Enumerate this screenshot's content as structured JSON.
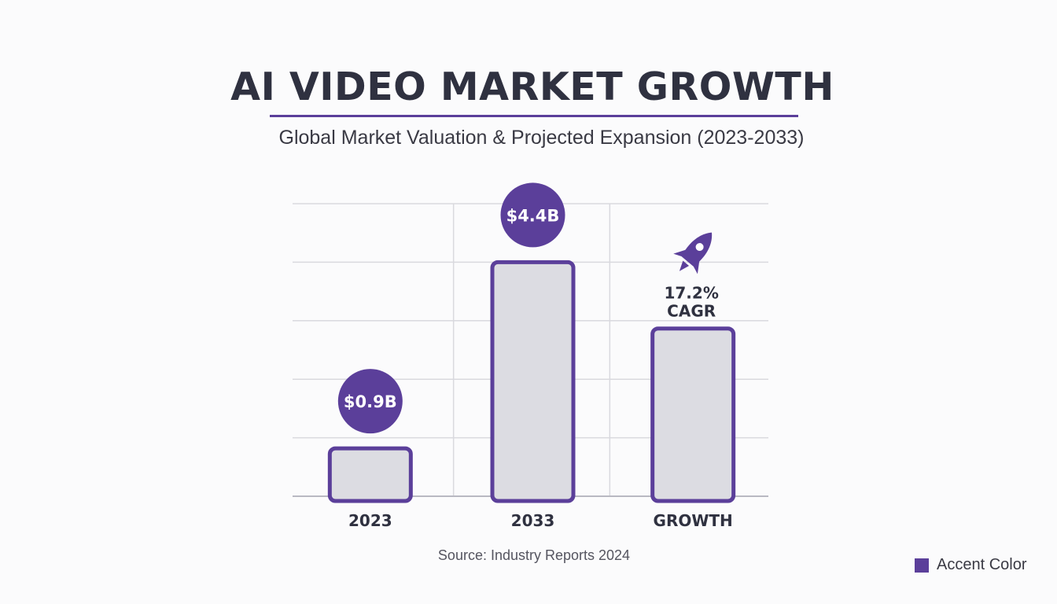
{
  "title": "AI VIDEO MARKET GROWTH",
  "subtitle": "Global Market Valuation & Projected Expansion (2023-2033)",
  "source": "Source: Industry Reports 2024",
  "legend": {
    "label": "Accent Color"
  },
  "colors": {
    "accent": "#5b3f9a",
    "bar_fill": "#dcdce2",
    "grid": "#d9d9de",
    "text_dark": "#2f3140"
  },
  "icons": {
    "growth": "rocket-icon"
  },
  "chart_data": {
    "type": "bar",
    "categories": [
      "2023",
      "2033",
      "GROWTH"
    ],
    "values": [
      0.9,
      4.4,
      17.2
    ],
    "data_labels": [
      "$0.9B",
      "$4.4B",
      "17.2%\nCAGR"
    ],
    "label_style": [
      "circle",
      "circle",
      "text-with-icon"
    ],
    "grid": true,
    "title": "AI VIDEO MARKET GROWTH",
    "subtitle": "Global Market Valuation & Projected Expansion (2023-2033)"
  }
}
